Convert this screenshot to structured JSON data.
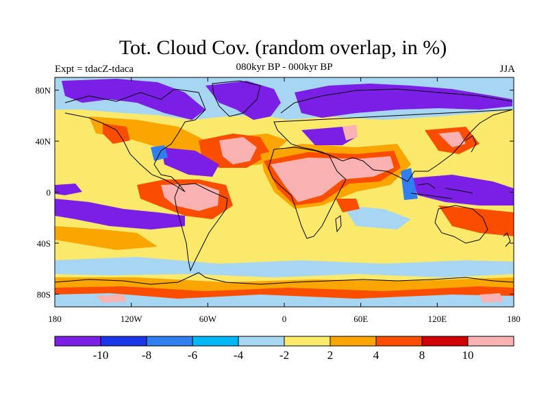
{
  "title": "Tot. Cloud Cov. (random overlap, in %)",
  "left_label": "Expt = tdacZ-tdaca",
  "center_label": "080kyr BP - 000kyr BP",
  "right_label": "JJA",
  "map": {
    "projection": "cylindrical-equidistant",
    "lon_range": [
      -180,
      180
    ],
    "lat_range": [
      -90,
      90
    ],
    "lat_ticks": [
      {
        "value": 80,
        "label": "80N"
      },
      {
        "value": 40,
        "label": "40N"
      },
      {
        "value": 0,
        "label": "0"
      },
      {
        "value": -40,
        "label": "40S"
      },
      {
        "value": -80,
        "label": "80S"
      }
    ],
    "lon_ticks": [
      {
        "value": -180,
        "label": "180"
      },
      {
        "value": -120,
        "label": "120W"
      },
      {
        "value": -60,
        "label": "60W"
      },
      {
        "value": 0,
        "label": "0"
      },
      {
        "value": 60,
        "label": "60E"
      },
      {
        "value": 120,
        "label": "120E"
      },
      {
        "value": 180,
        "label": "180"
      }
    ]
  },
  "colorbar": {
    "colors": [
      "#7b1fe6",
      "#1b36e8",
      "#2f7ff0",
      "#00b7f7",
      "#a7d6f2",
      "#fbe96c",
      "#fba600",
      "#fa4d00",
      "#d10000",
      "#f9b1b1"
    ],
    "labels": [
      "-10",
      "-8",
      "-6",
      "-4",
      "-2",
      "2",
      "4",
      "8",
      "10"
    ]
  },
  "field_colors": {
    "background": "#fbe96c",
    "purple": "#7b1fe6",
    "blue": "#2f7ff0",
    "lightblue": "#a7d6f2",
    "orange": "#fba600",
    "redorange": "#fa4d00",
    "red": "#d10000",
    "pink": "#f9b1b1",
    "cyan": "#00b7f7"
  }
}
